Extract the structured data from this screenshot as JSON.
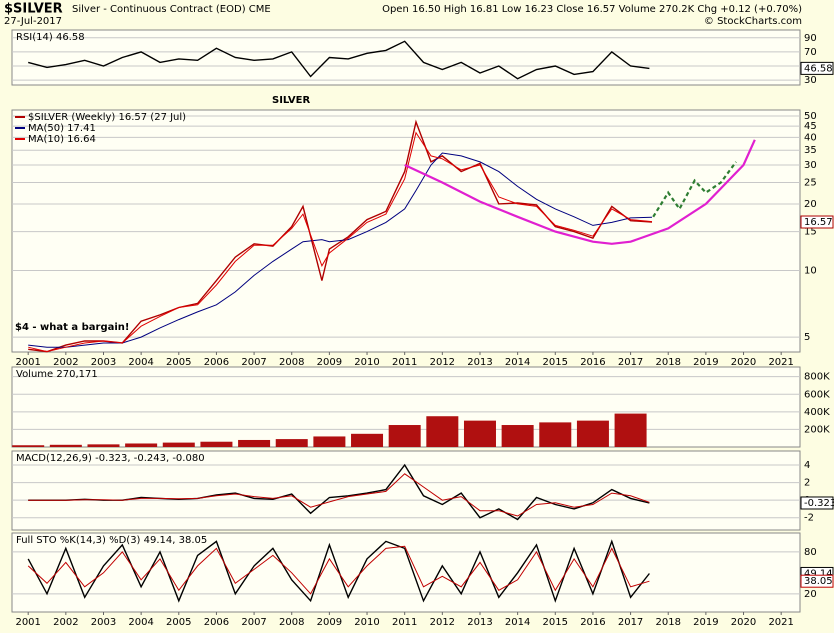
{
  "header": {
    "symbol": "$SILVER",
    "description": "Silver - Continuous Contract (EOD) CME",
    "date": "27-Jul-2017",
    "quote": "Open 16.50 High 16.81 Low 16.23 Close 16.57 Volume 270.2K Chg +0.12 (+0.70%)",
    "credit": "© StockCharts.com"
  },
  "chart_data": [
    {
      "type": "line",
      "title": "RSI(14) 46.58",
      "xlim": [
        2000.57,
        2021.5
      ],
      "ylim": [
        23,
        101
      ],
      "yticks": [
        30,
        50,
        70,
        90
      ],
      "grid": true,
      "x": [
        2001,
        2001.5,
        2002,
        2002.5,
        2003,
        2003.5,
        2004,
        2004.5,
        2005,
        2005.5,
        2006,
        2006.5,
        2007,
        2007.5,
        2008,
        2008.5,
        2009,
        2009.5,
        2010,
        2010.5,
        2011,
        2011.5,
        2012,
        2012.5,
        2013,
        2013.5,
        2014,
        2014.5,
        2015,
        2015.5,
        2016,
        2016.5,
        2017,
        2017.5
      ],
      "series": [
        {
          "color": "#000000",
          "value_tag": true,
          "values": [
            55,
            48,
            52,
            58,
            50,
            62,
            70,
            55,
            60,
            58,
            75,
            62,
            58,
            60,
            70,
            35,
            62,
            60,
            68,
            72,
            85,
            55,
            45,
            55,
            40,
            50,
            32,
            45,
            50,
            38,
            42,
            70,
            50,
            46.58
          ]
        }
      ]
    },
    {
      "type": "line",
      "log_scale": true,
      "xlim": [
        2000.57,
        2021.5
      ],
      "ylim": [
        4.28,
        53.2
      ],
      "yticks": [
        5,
        10,
        15,
        20,
        25,
        30,
        35,
        40,
        45,
        50
      ],
      "xticks": [
        2001,
        2002,
        2003,
        2004,
        2005,
        2006,
        2007,
        2008,
        2009,
        2010,
        2011,
        2012,
        2013,
        2014,
        2015,
        2016,
        2017,
        2018,
        2019,
        2020,
        2021
      ],
      "grid": true,
      "x": [
        2001,
        2001.5,
        2002,
        2002.5,
        2003,
        2003.5,
        2004,
        2004.5,
        2005,
        2005.5,
        2006,
        2006.5,
        2007,
        2007.5,
        2008,
        2008.3,
        2008.8,
        2009,
        2009.5,
        2010,
        2010.5,
        2011,
        2011.3,
        2011.7,
        2012,
        2012.5,
        2013,
        2013.5,
        2014,
        2014.5,
        2015,
        2015.5,
        2016,
        2016.5,
        2017,
        2017.57
      ],
      "series": [
        {
          "name": "$SILVER (Weekly) 16.57 (27 Jul)",
          "color": "#b00000",
          "value_tag": true,
          "values": [
            4.4,
            4.3,
            4.6,
            4.8,
            4.8,
            4.7,
            5.9,
            6.3,
            6.8,
            7.1,
            9.0,
            11.5,
            13.2,
            12.9,
            15.8,
            19.5,
            9.0,
            12.5,
            14.2,
            17.0,
            18.5,
            28.0,
            47.0,
            31.0,
            33.0,
            28.0,
            30.5,
            20.0,
            20.2,
            19.8,
            15.8,
            15.0,
            14.0,
            19.5,
            16.8,
            16.57
          ]
        },
        {
          "name": "MA(50) 17.41",
          "color": "#00007f",
          "values": [
            4.6,
            4.5,
            4.5,
            4.6,
            4.7,
            4.7,
            5.0,
            5.5,
            6.0,
            6.5,
            7.0,
            8.0,
            9.5,
            11.0,
            12.5,
            13.5,
            13.8,
            13.5,
            13.8,
            15.0,
            16.5,
            19.0,
            23.0,
            30.0,
            34.0,
            33.0,
            31.0,
            28.0,
            24.0,
            21.0,
            19.0,
            17.5,
            16.0,
            16.5,
            17.3,
            17.41
          ]
        },
        {
          "name": "MA(10) 16.64",
          "color": "#e00000",
          "values": [
            4.5,
            4.3,
            4.5,
            4.7,
            4.8,
            4.7,
            5.6,
            6.2,
            6.8,
            7.0,
            8.6,
            11.0,
            13.0,
            13.0,
            15.5,
            18.0,
            10.5,
            12.0,
            14.0,
            16.5,
            18.0,
            26.0,
            42.0,
            33.0,
            32.0,
            28.5,
            30.0,
            21.5,
            20.0,
            19.5,
            16.0,
            15.2,
            14.3,
            19.0,
            17.0,
            16.64
          ]
        }
      ],
      "drawings": [
        {
          "color": "#e020d0",
          "dashed": false,
          "x": [
            2011,
            2012,
            2013,
            2014,
            2015,
            2016,
            2016.5,
            2017,
            2018,
            2019,
            2020,
            2020.3
          ],
          "y": [
            30,
            25,
            20.5,
            17.5,
            15,
            13.5,
            13.2,
            13.5,
            15.5,
            20,
            30,
            39
          ]
        },
        {
          "color": "#2e7d32",
          "dashed": true,
          "x": [
            2017.6,
            2018,
            2018.3,
            2018.7,
            2019,
            2019.4,
            2019.8
          ],
          "y": [
            17.5,
            22.5,
            19,
            25.5,
            22.5,
            25,
            31
          ]
        }
      ],
      "annotations": [
        "SILVER",
        "$4 -  what a bargain!"
      ]
    },
    {
      "type": "bar",
      "title": "Volume 270,171",
      "xlim": [
        2000.57,
        2021.5
      ],
      "ylim": [
        0,
        910000
      ],
      "grid": true,
      "yticks": [
        {
          "value": 200000,
          "label": "200K"
        },
        {
          "value": 400000,
          "label": "400K"
        },
        {
          "value": 600000,
          "label": "600K"
        },
        {
          "value": 800000,
          "label": "800K"
        }
      ],
      "x": [
        2001,
        2002,
        2003,
        2004,
        2005,
        2006,
        2007,
        2008,
        2009,
        2010,
        2011,
        2012,
        2013,
        2014,
        2015,
        2016,
        2017
      ],
      "series": [
        {
          "color": "#b01010",
          "values": [
            20000,
            25000,
            30000,
            40000,
            50000,
            60000,
            80000,
            90000,
            120000,
            150000,
            250000,
            350000,
            300000,
            250000,
            280000,
            300000,
            380000
          ]
        }
      ]
    },
    {
      "type": "line",
      "title": "MACD(12,26,9) -0.323, -0.243, -0.080",
      "xlim": [
        2000.57,
        2021.5
      ],
      "ylim": [
        -3.4,
        5.6
      ],
      "yticks": [
        -2,
        0,
        2,
        4
      ],
      "grid": true,
      "x": [
        2001,
        2001.5,
        2002,
        2002.5,
        2003,
        2003.5,
        2004,
        2004.5,
        2005,
        2005.5,
        2006,
        2006.5,
        2007,
        2007.5,
        2008,
        2008.5,
        2009,
        2009.5,
        2010,
        2010.5,
        2011,
        2011.5,
        2012,
        2012.5,
        2013,
        2013.5,
        2014,
        2014.5,
        2015,
        2015.5,
        2016,
        2016.5,
        2017,
        2017.5
      ],
      "series": [
        {
          "color": "#000000",
          "value_tag": true,
          "values": [
            0,
            0,
            0,
            0.1,
            0,
            0,
            0.3,
            0.2,
            0.1,
            0.2,
            0.6,
            0.8,
            0.2,
            0.1,
            0.7,
            -1.5,
            0.3,
            0.5,
            0.8,
            1.2,
            4.0,
            0.5,
            -0.5,
            0.8,
            -2.0,
            -1.0,
            -2.2,
            0.3,
            -0.5,
            -1.0,
            -0.3,
            1.2,
            0.2,
            -0.323
          ]
        },
        {
          "color": "#c00000",
          "values": [
            0,
            0,
            0,
            0.05,
            0.05,
            0,
            0.2,
            0.2,
            0.15,
            0.2,
            0.5,
            0.7,
            0.4,
            0.2,
            0.5,
            -0.8,
            -0.2,
            0.4,
            0.7,
            1.0,
            3.0,
            1.5,
            0,
            0.4,
            -1.2,
            -1.2,
            -1.8,
            -0.5,
            -0.3,
            -0.8,
            -0.5,
            0.8,
            0.5,
            -0.243
          ]
        }
      ]
    },
    {
      "type": "line",
      "title": "Full STO %K(14,3) %D(3) 49.14, 38.05",
      "xlim": [
        2000.57,
        2021.5
      ],
      "ylim": [
        -6,
        107
      ],
      "yticks": [
        20,
        80
      ],
      "grid": true,
      "xticks": [
        2001,
        2002,
        2003,
        2004,
        2005,
        2006,
        2007,
        2008,
        2009,
        2010,
        2011,
        2012,
        2013,
        2014,
        2015,
        2016,
        2017,
        2018,
        2019,
        2020,
        2021
      ],
      "x": [
        2001,
        2001.5,
        2002,
        2002.5,
        2003,
        2003.5,
        2004,
        2004.5,
        2005,
        2005.5,
        2006,
        2006.5,
        2007,
        2007.5,
        2008,
        2008.5,
        2009,
        2009.5,
        2010,
        2010.5,
        2011,
        2011.5,
        2012,
        2012.5,
        2013,
        2013.5,
        2014,
        2014.5,
        2015,
        2015.5,
        2016,
        2016.5,
        2017,
        2017.5
      ],
      "series": [
        {
          "color": "#000000",
          "value_tag": true,
          "values": [
            70,
            20,
            85,
            15,
            60,
            90,
            30,
            80,
            10,
            75,
            95,
            20,
            60,
            85,
            40,
            10,
            90,
            15,
            70,
            95,
            85,
            10,
            60,
            20,
            80,
            15,
            50,
            90,
            10,
            85,
            20,
            95,
            15,
            49.14
          ]
        },
        {
          "color": "#c00000",
          "value_tag": true,
          "values": [
            60,
            35,
            65,
            30,
            50,
            80,
            40,
            70,
            25,
            60,
            85,
            35,
            55,
            75,
            50,
            20,
            70,
            30,
            60,
            85,
            88,
            30,
            45,
            30,
            65,
            25,
            40,
            80,
            25,
            70,
            30,
            85,
            30,
            38.05
          ]
        }
      ]
    }
  ]
}
